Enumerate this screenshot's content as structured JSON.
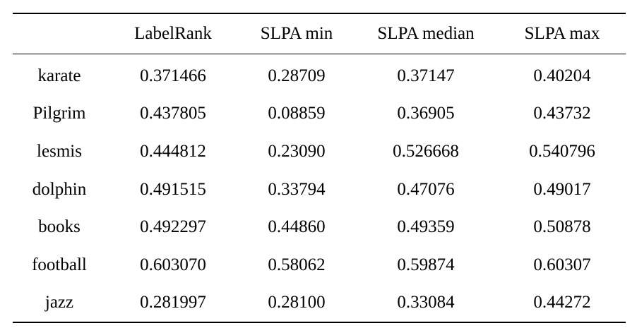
{
  "table": {
    "headers": [
      "",
      "LabelRank",
      "SLPA min",
      "SLPA median",
      "SLPA max"
    ],
    "rows": [
      [
        "karate",
        "0.371466",
        "0.28709",
        "0.37147",
        "0.40204"
      ],
      [
        "Pilgrim",
        "0.437805",
        "0.08859",
        "0.36905",
        "0.43732"
      ],
      [
        "lesmis",
        "0.444812",
        "0.23090",
        "0.526668",
        "0.540796"
      ],
      [
        "dolphin",
        "0.491515",
        "0.33794",
        "0.47076",
        "0.49017"
      ],
      [
        "books",
        "0.492297",
        "0.44860",
        "0.49359",
        "0.50878"
      ],
      [
        "football",
        "0.603070",
        "0.58062",
        "0.59874",
        "0.60307"
      ],
      [
        "jazz",
        "0.281997",
        "0.28100",
        "0.33084",
        "0.44272"
      ]
    ]
  }
}
